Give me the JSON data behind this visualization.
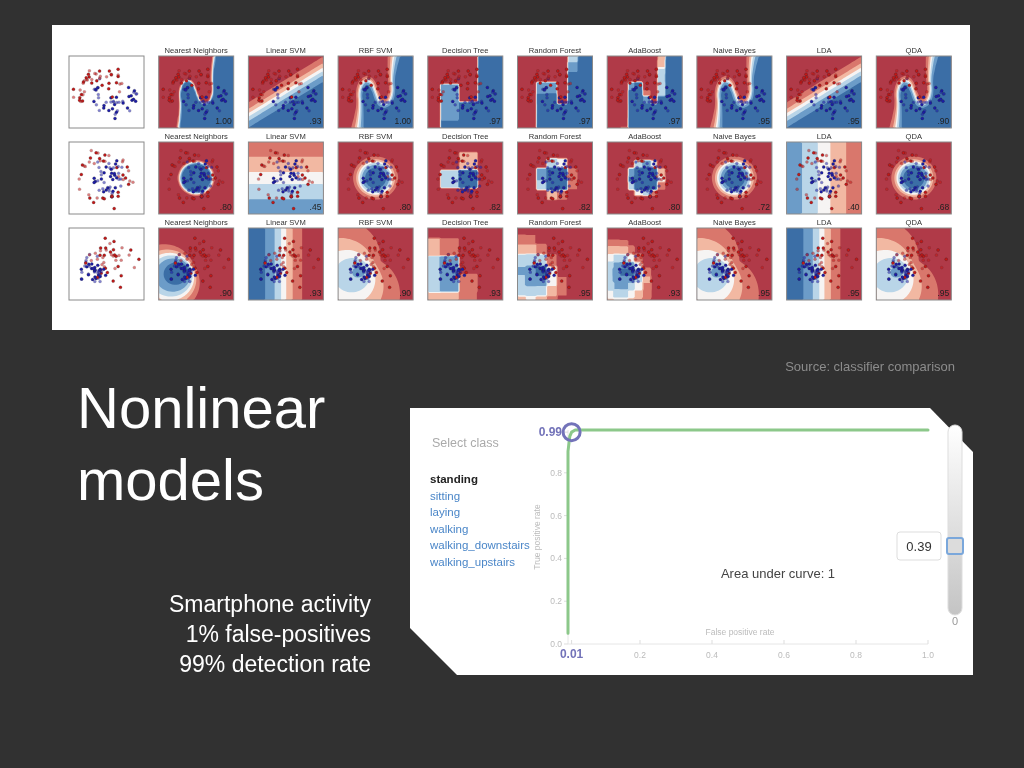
{
  "chart_data": [
    {
      "type": "other",
      "categories": [
        null,
        "Nearest Neighbors",
        "Linear SVM",
        "RBF SVM",
        "Decision Tree",
        "Random Forest",
        "AdaBoost",
        "Naive Bayes",
        "LDA",
        "QDA"
      ],
      "cell_labels": [
        [
          null,
          "1.00",
          ".93",
          "1.00",
          ".97",
          ".97",
          ".97",
          ".95",
          ".95",
          ".90"
        ],
        [
          null,
          ".80",
          ".45",
          ".80",
          ".82",
          ".82",
          ".80",
          ".72",
          ".40",
          ".68"
        ],
        [
          null,
          ".90",
          ".93",
          ".90",
          ".93",
          ".95",
          ".93",
          ".95",
          ".95",
          ".95"
        ]
      ],
      "annotations": [
        "Source: classifier comparison"
      ]
    },
    {
      "type": "line",
      "xlabel": "False positive rate",
      "ylabel": "True positive rate",
      "xlim": [
        0,
        1
      ],
      "ylim": [
        0,
        1
      ],
      "xticks": [
        {
          "value": 0.01,
          "label": "0.01"
        },
        0.2,
        0.4,
        0.6,
        0.8,
        {
          "value": 1,
          "label": "1.0"
        }
      ],
      "yticks": [
        {
          "value": 0,
          "label": "0.0"
        },
        0.2,
        0.4,
        0.6,
        0.8,
        {
          "value": 0.99,
          "label": "0.99"
        }
      ],
      "series": [
        {
          "type": "line",
          "color": "#8cc88a",
          "x": [
            0,
            0,
            0.005,
            0.01,
            0.02,
            1
          ],
          "values": [
            0.05,
            0.9,
            0.97,
            0.99,
            1,
            1
          ]
        },
        {
          "type": "scatter",
          "color": "#7373b9",
          "marker": "circle",
          "x": [
            0.01
          ],
          "values": [
            0.99
          ]
        }
      ],
      "annotations": [
        "Select class",
        "standing",
        "sitting",
        "laying",
        "walking",
        "walking_downstairs",
        "walking_upstairs",
        "Area under curve: 1",
        "0.39",
        "0"
      ]
    },
    {
      "type": "other",
      "title": "Nonlinear models",
      "annotations": [
        "Smartphone activity",
        "1% false-positives",
        "99% detection rate"
      ]
    }
  ]
}
